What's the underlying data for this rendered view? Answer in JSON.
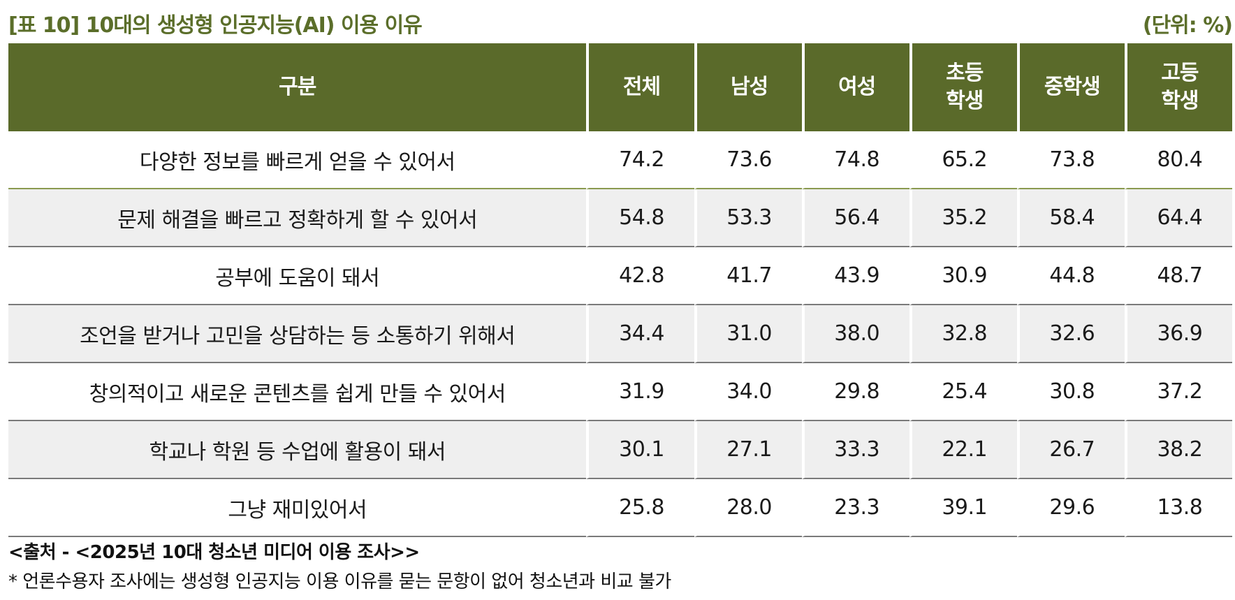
{
  "title": "[표 10] 10대의 생성형 인공지능(AI) 이용 이유",
  "unit": "(단위: %)",
  "table": {
    "headers": [
      "구분",
      "전체",
      "남성",
      "여성",
      "초등\n학생",
      "중학생",
      "고등\n학생"
    ],
    "rows": [
      {
        "label": "다양한 정보를 빠르게 얻을 수 있어서",
        "values": [
          "74.2",
          "73.6",
          "74.8",
          "65.2",
          "73.8",
          "80.4"
        ]
      },
      {
        "label": "문제 해결을 빠르고 정확하게 할 수 있어서",
        "values": [
          "54.8",
          "53.3",
          "56.4",
          "35.2",
          "58.4",
          "64.4"
        ]
      },
      {
        "label": "공부에 도움이 돼서",
        "values": [
          "42.8",
          "41.7",
          "43.9",
          "30.9",
          "44.8",
          "48.7"
        ]
      },
      {
        "label": "조언을 받거나 고민을 상담하는 등 소통하기 위해서",
        "values": [
          "34.4",
          "31.0",
          "38.0",
          "32.8",
          "32.6",
          "36.9"
        ]
      },
      {
        "label": "창의적이고 새로운 콘텐츠를 쉽게 만들 수 있어서",
        "values": [
          "31.9",
          "34.0",
          "29.8",
          "25.4",
          "30.8",
          "37.2"
        ]
      },
      {
        "label": "학교나 학원 등 수업에 활용이 돼서",
        "values": [
          "30.1",
          "27.1",
          "33.3",
          "22.1",
          "26.7",
          "38.2"
        ]
      },
      {
        "label": "그냥 재미있어서",
        "values": [
          "25.8",
          "28.0",
          "23.3",
          "39.1",
          "29.6",
          "13.8"
        ]
      }
    ]
  },
  "source": "<출처 - <2025년 10대 청소년 미디어 이용 조사>>",
  "note": "* 언론수용자 조사에는 생성형 인공지능 이용 이유를 묻는 문항이 없어 청소년과 비교 불가",
  "colors": {
    "header_bg": "#5a6a2a",
    "title_text": "#5b6e2a",
    "alt_row_bg": "#efefef"
  }
}
